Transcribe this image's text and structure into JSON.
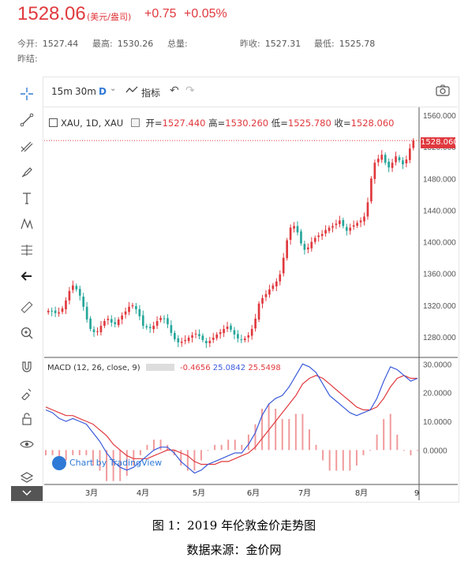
{
  "header": {
    "price": "1528.06",
    "unit": "(美元/盎司)",
    "change": "+0.75",
    "change_pct": "+0.05%",
    "stats": [
      {
        "label": "今开:",
        "value": "1527.44"
      },
      {
        "label": "最高:",
        "value": "1530.26"
      },
      {
        "label": "总量:",
        "value": ""
      },
      {
        "label": "昨收:",
        "value": "1527.31"
      },
      {
        "label": "最低:",
        "value": "1525.78"
      },
      {
        "label": "昨结:",
        "value": ""
      }
    ]
  },
  "toolbar": {
    "intervals": [
      "15m",
      "30m",
      "D"
    ],
    "indicators_label": "指标"
  },
  "legend": {
    "symbol": "XAU, 1D, XAU",
    "open_label": "开=",
    "open": "1527.440",
    "high_label": "高=",
    "high": "1530.260",
    "low_label": "低=",
    "low": "1525.780",
    "close_label": "收=",
    "close": "1528.060",
    "current_price_tag": "1528.060"
  },
  "macd_legend": {
    "title": "MACD (12, 26, close, 9)",
    "v1": "-0.4656",
    "v2": "25.0842",
    "v3": "25.5498"
  },
  "watermark": "Chart by TradingView",
  "captions": {
    "line1": "图 1：2019 年伦敦金价走势图",
    "line2": "数据来源：金价网"
  },
  "colors": {
    "up": "#e0393e",
    "down": "#26a69a",
    "macd": "#3b5bdb",
    "signal": "#e0393e"
  },
  "chart_data": [
    {
      "type": "candlestick",
      "title": "XAU, 1D, XAU",
      "price_ticks": [
        "1560.000",
        "1520.000",
        "1480.000",
        "1440.000",
        "1400.000",
        "1360.000",
        "1320.000",
        "1280.000"
      ],
      "x_ticks": [
        "3月",
        "4月",
        "5月",
        "6月",
        "7月",
        "8月",
        "9"
      ],
      "ylim": [
        1255,
        1570
      ],
      "series": [
        {
          "name": "close",
          "values": [
            1313,
            1312,
            1310,
            1311,
            1316,
            1326,
            1338,
            1345,
            1340,
            1332,
            1318,
            1302,
            1290,
            1286,
            1287,
            1294,
            1300,
            1303,
            1298,
            1296,
            1302,
            1307,
            1312,
            1318,
            1320,
            1315,
            1306,
            1294,
            1292,
            1291,
            1294,
            1300,
            1304,
            1303,
            1296,
            1285,
            1277,
            1273,
            1274,
            1276,
            1279,
            1282,
            1284,
            1281,
            1276,
            1272,
            1275,
            1279,
            1283,
            1286,
            1290,
            1293,
            1289,
            1283,
            1278,
            1276,
            1278,
            1282,
            1290,
            1303,
            1322,
            1329,
            1334,
            1340,
            1345,
            1350,
            1359,
            1380,
            1402,
            1418,
            1420,
            1412,
            1398,
            1390,
            1393,
            1400,
            1405,
            1408,
            1410,
            1415,
            1418,
            1420,
            1423,
            1427,
            1420,
            1414,
            1418,
            1421,
            1424,
            1427,
            1432,
            1450,
            1480,
            1500,
            1505,
            1510,
            1500,
            1494,
            1500,
            1508,
            1503,
            1498,
            1504,
            1518,
            1528
          ]
        }
      ]
    },
    {
      "type": "line",
      "title": "MACD (12, 26, close, 9)",
      "price_ticks": [
        "30.0000",
        "20.0000",
        "10.0000",
        "0.0000"
      ],
      "ylim": [
        -12,
        32
      ],
      "series": [
        {
          "name": "MACD",
          "values": [
            14,
            13,
            11,
            10,
            11,
            10,
            9,
            6,
            3,
            -1,
            -4,
            -6,
            -7,
            -6,
            -4,
            -2,
            0,
            1,
            1,
            -1,
            -4,
            -6,
            -8,
            -7,
            -5,
            -4,
            -3,
            -2,
            -1,
            -1,
            2,
            6,
            12,
            16,
            18,
            19,
            22,
            26,
            30,
            29,
            27,
            23,
            19,
            17,
            15,
            13,
            12,
            13,
            14,
            18,
            24,
            29,
            28,
            26,
            24,
            25
          ]
        },
        {
          "name": "Signal",
          "values": [
            15,
            14,
            13,
            12,
            12,
            11,
            10,
            9,
            7,
            5,
            2,
            0,
            -2,
            -3,
            -3,
            -3,
            -2,
            -1,
            0,
            0,
            -1,
            -2,
            -4,
            -5,
            -5,
            -5,
            -4,
            -4,
            -3,
            -2,
            -1,
            1,
            4,
            7,
            10,
            13,
            16,
            19,
            23,
            25,
            26,
            25,
            23,
            21,
            19,
            17,
            15,
            14,
            14,
            15,
            18,
            22,
            25,
            26,
            25,
            25
          ]
        }
      ]
    }
  ]
}
